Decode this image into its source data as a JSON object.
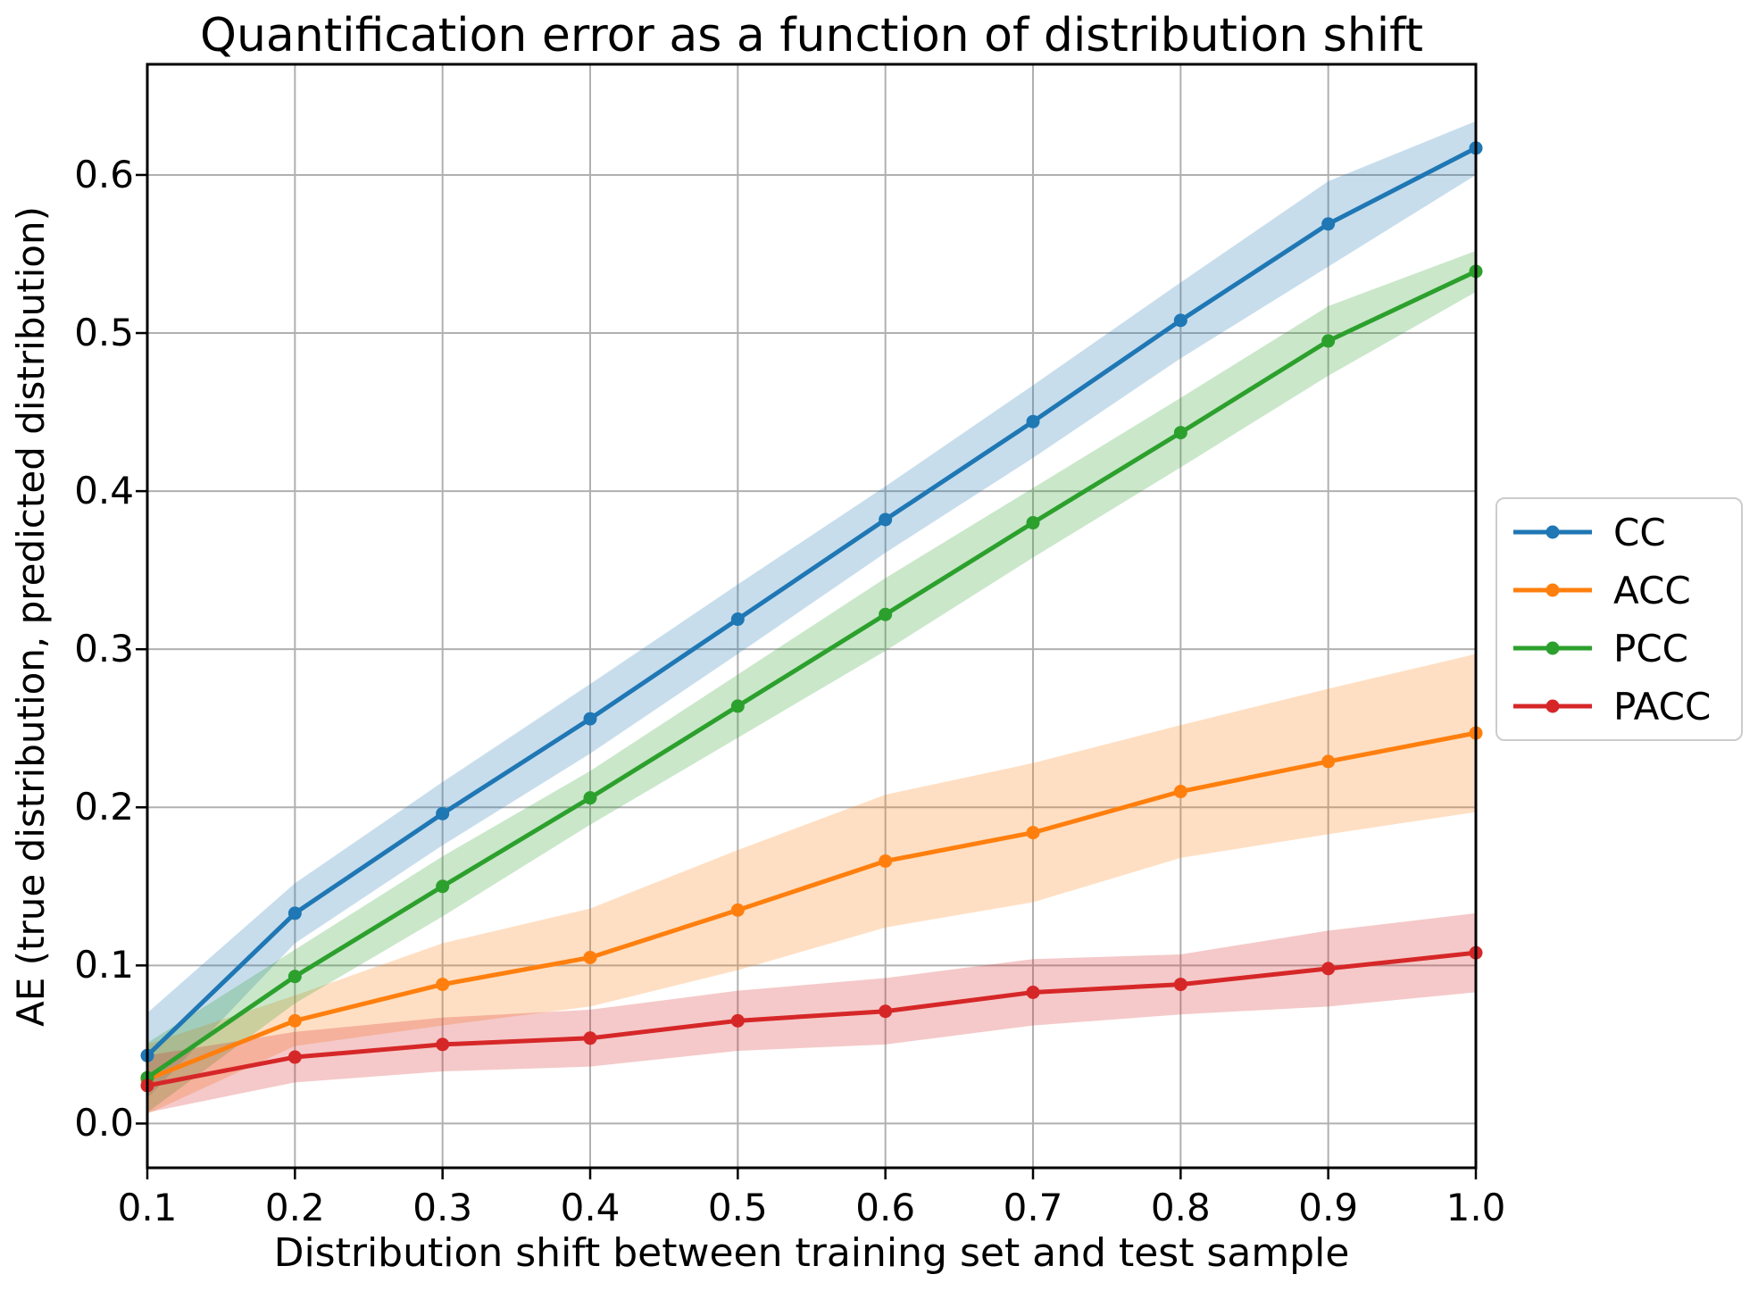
{
  "figure": {
    "title": "Quantification error as a function of distribution shift",
    "x_axis_label": "Distribution shift between training set and test sample",
    "y_axis_label": "AE (true distribution, predicted distribution)"
  },
  "chart_data": {
    "type": "line",
    "title": "Quantification error as a function of distribution shift",
    "xlabel": "Distribution shift between training set and test sample",
    "ylabel": "AE (true distribution, predicted distribution)",
    "x": [
      0.1,
      0.2,
      0.3,
      0.4,
      0.5,
      0.6,
      0.7,
      0.8,
      0.9,
      1.0
    ],
    "xlim": [
      0.1,
      1.0
    ],
    "ylim": [
      -0.028,
      0.67
    ],
    "xtick_labels": [
      "0.1",
      "0.2",
      "0.3",
      "0.4",
      "0.5",
      "0.6",
      "0.7",
      "0.8",
      "0.9",
      "1.0"
    ],
    "ytick_labels": [
      "0.0",
      "0.1",
      "0.2",
      "0.3",
      "0.4",
      "0.5",
      "0.6"
    ],
    "grid": true,
    "legend_position": "outside-right",
    "band_opacity": 0.25,
    "colors": {
      "grid": "#b0b0b0",
      "spine": "#000000",
      "background": "#ffffff"
    },
    "series": [
      {
        "name": "CC",
        "color": "#1f77b4",
        "values": [
          0.043,
          0.133,
          0.196,
          0.256,
          0.319,
          0.382,
          0.444,
          0.508,
          0.569,
          0.617
        ],
        "band_lower": [
          0.016,
          0.114,
          0.176,
          0.234,
          0.297,
          0.361,
          0.421,
          0.484,
          0.542,
          0.6
        ],
        "band_upper": [
          0.07,
          0.152,
          0.216,
          0.278,
          0.341,
          0.403,
          0.467,
          0.532,
          0.596,
          0.634
        ]
      },
      {
        "name": "ACC",
        "color": "#ff7f0e",
        "values": [
          0.028,
          0.065,
          0.088,
          0.105,
          0.135,
          0.166,
          0.184,
          0.21,
          0.229,
          0.247
        ],
        "band_lower": [
          0.006,
          0.049,
          0.062,
          0.074,
          0.097,
          0.124,
          0.14,
          0.168,
          0.183,
          0.197
        ],
        "band_upper": [
          0.05,
          0.081,
          0.114,
          0.136,
          0.173,
          0.208,
          0.228,
          0.252,
          0.275,
          0.297
        ]
      },
      {
        "name": "PCC",
        "color": "#2ca02c",
        "values": [
          0.029,
          0.093,
          0.15,
          0.206,
          0.264,
          0.322,
          0.38,
          0.437,
          0.495,
          0.539
        ],
        "band_lower": [
          0.007,
          0.076,
          0.131,
          0.189,
          0.244,
          0.299,
          0.358,
          0.415,
          0.473,
          0.526
        ],
        "band_upper": [
          0.051,
          0.11,
          0.169,
          0.223,
          0.284,
          0.345,
          0.402,
          0.459,
          0.517,
          0.552
        ]
      },
      {
        "name": "PACC",
        "color": "#d62728",
        "values": [
          0.024,
          0.042,
          0.05,
          0.054,
          0.065,
          0.071,
          0.083,
          0.088,
          0.098,
          0.108
        ],
        "band_lower": [
          0.007,
          0.026,
          0.033,
          0.036,
          0.046,
          0.05,
          0.062,
          0.069,
          0.074,
          0.083
        ],
        "band_upper": [
          0.043,
          0.058,
          0.067,
          0.072,
          0.084,
          0.092,
          0.104,
          0.107,
          0.122,
          0.133
        ]
      }
    ]
  },
  "legend": {
    "entries": [
      {
        "label": "CC",
        "color": "#1f77b4"
      },
      {
        "label": "ACC",
        "color": "#ff7f0e"
      },
      {
        "label": "PCC",
        "color": "#2ca02c"
      },
      {
        "label": "PACC",
        "color": "#d62728"
      }
    ]
  }
}
